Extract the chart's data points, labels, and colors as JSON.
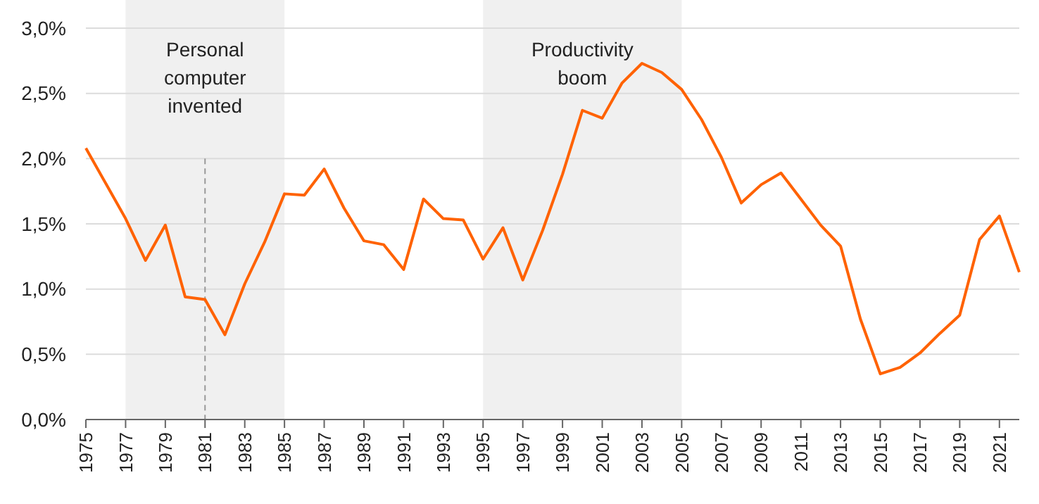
{
  "chart_data": {
    "type": "line",
    "x": [
      1975,
      1976,
      1977,
      1978,
      1979,
      1980,
      1981,
      1982,
      1983,
      1984,
      1985,
      1986,
      1987,
      1988,
      1989,
      1990,
      1991,
      1992,
      1993,
      1994,
      1995,
      1996,
      1997,
      1998,
      1999,
      2000,
      2001,
      2002,
      2003,
      2004,
      2005,
      2006,
      2007,
      2008,
      2009,
      2010,
      2011,
      2012,
      2013,
      2014,
      2015,
      2016,
      2017,
      2018,
      2019,
      2020,
      2021,
      2022
    ],
    "series": [
      {
        "color": "#ff6200",
        "values": [
          2.08,
          1.81,
          1.54,
          1.22,
          1.49,
          0.94,
          0.92,
          0.65,
          1.04,
          1.36,
          1.73,
          1.72,
          1.92,
          1.62,
          1.37,
          1.34,
          1.15,
          1.69,
          1.54,
          1.53,
          1.23,
          1.47,
          1.07,
          1.45,
          1.88,
          2.37,
          2.31,
          2.58,
          2.73,
          2.66,
          2.53,
          2.3,
          2.01,
          1.66,
          1.8,
          1.89,
          1.69,
          1.49,
          1.33,
          0.77,
          0.35,
          0.4,
          0.51,
          0.66,
          0.8,
          1.38,
          1.56,
          1.13
        ]
      }
    ],
    "xlim": [
      1975,
      2022
    ],
    "xticks": [
      1975,
      1977,
      1979,
      1981,
      1983,
      1985,
      1987,
      1989,
      1991,
      1993,
      1995,
      1997,
      1999,
      2001,
      2003,
      2005,
      2007,
      2009,
      2011,
      2013,
      2015,
      2017,
      2019,
      2021
    ],
    "ylim": [
      0,
      3
    ],
    "yticks": [
      {
        "value": 0,
        "label": "0,0%"
      },
      {
        "value": 0.5,
        "label": "0,5%"
      },
      {
        "value": 1,
        "label": "1,0%"
      },
      {
        "value": 1.5,
        "label": "1,5%"
      },
      {
        "value": 2,
        "label": "2,0%"
      },
      {
        "value": 2.5,
        "label": "2,5%"
      },
      {
        "value": 3,
        "label": "3,0%"
      }
    ],
    "grid": "y",
    "marker": "none",
    "line_style": "solid",
    "bands": [
      {
        "axis": "x",
        "from": 1977,
        "to": 1985,
        "label": "Personal\ncomputer\ninvented",
        "color": "#f0f0f0"
      },
      {
        "axis": "x",
        "from": 1995,
        "to": 2005,
        "label": "Productivity\nboom",
        "color": "#f0f0f0"
      }
    ],
    "ref_lines": [
      {
        "axis": "x",
        "value": 1981,
        "color": "#999999",
        "line_style": "dashed"
      }
    ]
  }
}
